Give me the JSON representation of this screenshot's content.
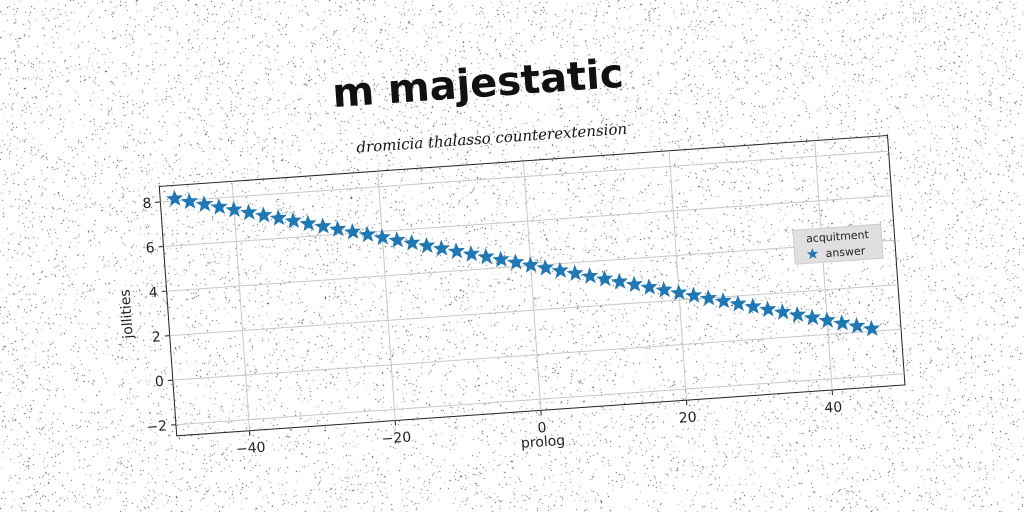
{
  "chart_data": {
    "type": "scatter",
    "title": "m majestatic",
    "subtitle": "dromicia thalasso counterextension",
    "xlabel": "prolog",
    "ylabel": "jollities",
    "xlim": [
      -50,
      50
    ],
    "ylim": [
      -2.5,
      8.7
    ],
    "xticks": [
      -40,
      -20,
      0,
      20,
      40
    ],
    "xtick_labels": [
      "−40",
      "−20",
      "0",
      "20",
      "40"
    ],
    "yticks": [
      -2,
      0,
      2,
      4,
      6,
      8
    ],
    "ytick_labels": [
      "−2",
      "0",
      "2",
      "4",
      "6",
      "8"
    ],
    "grid": true,
    "legend": {
      "title": "acquitment",
      "placement": "right"
    },
    "series": [
      {
        "name": "answer",
        "marker": "star",
        "color": "#1f77b4",
        "x": [
          -48,
          -46,
          -44,
          -42,
          -40,
          -38,
          -36,
          -34,
          -32,
          -30,
          -28,
          -26,
          -24,
          -22,
          -20,
          -18,
          -16,
          -14,
          -12,
          -10,
          -8,
          -6,
          -4,
          -2,
          0,
          2,
          4,
          6,
          8,
          10,
          12,
          14,
          16,
          18,
          20,
          22,
          24,
          26,
          28,
          30,
          32,
          34,
          36,
          38,
          40,
          42,
          44,
          46
        ],
        "y": [
          8.1,
          7.93,
          7.76,
          7.59,
          7.42,
          7.25,
          7.08,
          6.91,
          6.74,
          6.57,
          6.4,
          6.23,
          6.06,
          5.89,
          5.72,
          5.55,
          5.38,
          5.21,
          5.04,
          4.87,
          4.7,
          4.53,
          4.36,
          4.19,
          4.02,
          3.85,
          3.68,
          3.51,
          3.34,
          3.17,
          3.0,
          2.83,
          2.66,
          2.49,
          2.32,
          2.15,
          1.98,
          1.81,
          1.64,
          1.47,
          1.3,
          1.13,
          0.96,
          0.79,
          0.62,
          0.45,
          0.28,
          0.11
        ]
      }
    ]
  }
}
